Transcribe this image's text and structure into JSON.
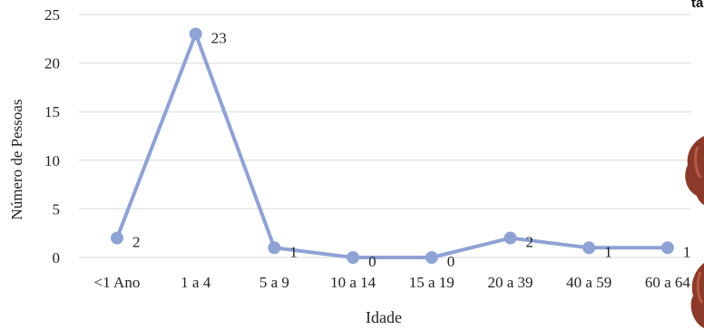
{
  "chart_data": {
    "type": "line",
    "title": "",
    "xlabel": "Idade",
    "ylabel": "Número de Pessoas",
    "categories": [
      "<1 Ano",
      "1 a 4",
      "5 a 9",
      "10 a 14",
      "15 a 19",
      "20 a 39",
      "40 a 59",
      "60 a 64"
    ],
    "series": [
      {
        "values": [
          2,
          23,
          1,
          0,
          0,
          2,
          1,
          1
        ],
        "data_labels": [
          "2",
          "23",
          "1",
          "0",
          "0",
          "2",
          "1",
          "1"
        ]
      }
    ],
    "ylim": [
      0,
      25
    ],
    "yticks": [
      0,
      5,
      10,
      15,
      20,
      25
    ],
    "grid": true,
    "legend": "none"
  },
  "colors": {
    "series_line": "#8FA2D4",
    "gridline": "#D9D9D9",
    "text": "#222222"
  },
  "corner_text": "ta"
}
